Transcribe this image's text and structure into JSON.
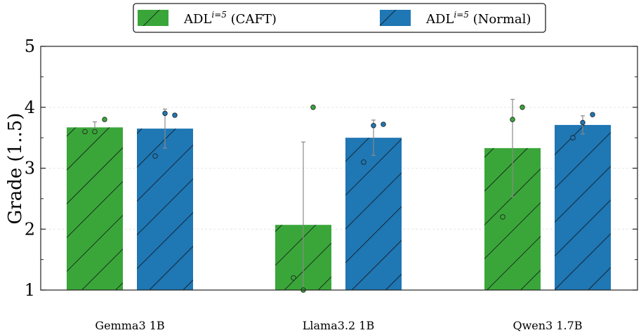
{
  "chart_data": {
    "type": "bar",
    "title": "",
    "xlabel": "",
    "ylabel": "Grade (1..5)",
    "ylim": [
      1,
      5
    ],
    "yticks": [
      "1",
      "2",
      "3",
      "4",
      "5"
    ],
    "grid": true,
    "legend_position": "top-center",
    "categories": [
      "Gemma3 1B",
      "Llama3.2 1B",
      "Qwen3 1.7B"
    ],
    "colors": {
      "caft": "#3aa63a",
      "normal": "#1f77b4"
    },
    "series": [
      {
        "key": "caft",
        "name_base": "ADL",
        "name_sup": "i=5",
        "name_suffix": " (CAFT)",
        "values": [
          3.67,
          2.07,
          3.33
        ],
        "errors": [
          0.09,
          1.36,
          0.8
        ],
        "points": [
          [
            3.6,
            3.6,
            3.8
          ],
          [
            1.2,
            1.0,
            4.0
          ],
          [
            2.2,
            3.8,
            4.0
          ]
        ]
      },
      {
        "key": "normal",
        "name_base": "ADL",
        "name_sup": "i=5",
        "name_suffix": " (Normal)",
        "values": [
          3.65,
          3.5,
          3.71
        ],
        "errors": [
          0.32,
          0.29,
          0.15
        ],
        "points": [
          [
            3.2,
            3.9,
            3.87
          ],
          [
            3.1,
            3.7,
            3.72
          ],
          [
            3.5,
            3.75,
            3.88
          ]
        ]
      }
    ]
  }
}
